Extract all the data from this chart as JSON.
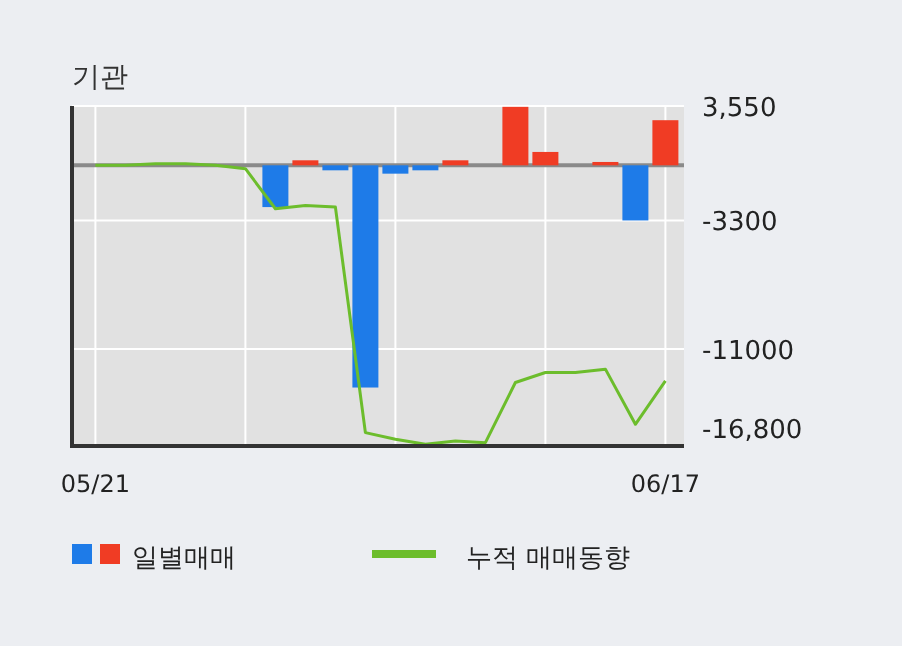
{
  "chart_data": {
    "type": "bar",
    "title": "기관",
    "categories": [
      "05/21",
      null,
      null,
      null,
      null,
      null,
      null,
      null,
      null,
      null,
      null,
      null,
      null,
      null,
      null,
      null,
      null,
      null,
      null,
      "06/17"
    ],
    "series": [
      {
        "name": "일별매매",
        "colors": [
          "#f03c24",
          "#f03c24",
          "#f03c24",
          "#f03c24",
          "#1e7be8",
          "#1e7be8",
          "#1e7be8",
          "#f03c24",
          "#1e7be8",
          "#1e7be8",
          "#1e7be8",
          "#1e7be8",
          "#f03c24",
          "#f03c24",
          "#f03c24",
          "#f03c24",
          "#f03c24",
          "#f03c24",
          "#1e7be8",
          "#f03c24"
        ],
        "values": [
          null,
          null,
          null,
          null,
          null,
          null,
          -2500,
          300,
          -300,
          -13300,
          -500,
          -300,
          300,
          0,
          3500,
          800,
          0,
          200,
          -3300,
          2700
        ]
      },
      {
        "type": "line",
        "name": "누적 매매동향",
        "color": "#6cbd2c",
        "values": [
          0,
          0,
          100,
          100,
          0,
          -200,
          -2600,
          -2400,
          -2500,
          -16000,
          -16400,
          -16700,
          -16500,
          -16600,
          -13000,
          -12400,
          -12400,
          -12200,
          -15500,
          -12900
        ]
      }
    ],
    "ylim": [
      -16800,
      3550
    ],
    "yticks": [
      {
        "value": 3550,
        "label": "3,550"
      },
      {
        "value": -3300,
        "label": "-3300"
      },
      {
        "value": -11000,
        "label": "-11000"
      },
      {
        "value": -16800,
        "label": "-16,800"
      }
    ],
    "ref_lines": [
      {
        "axis": "y",
        "value": 0,
        "color": "#8a8a8a"
      }
    ],
    "grid": true,
    "legend": "bottom"
  }
}
